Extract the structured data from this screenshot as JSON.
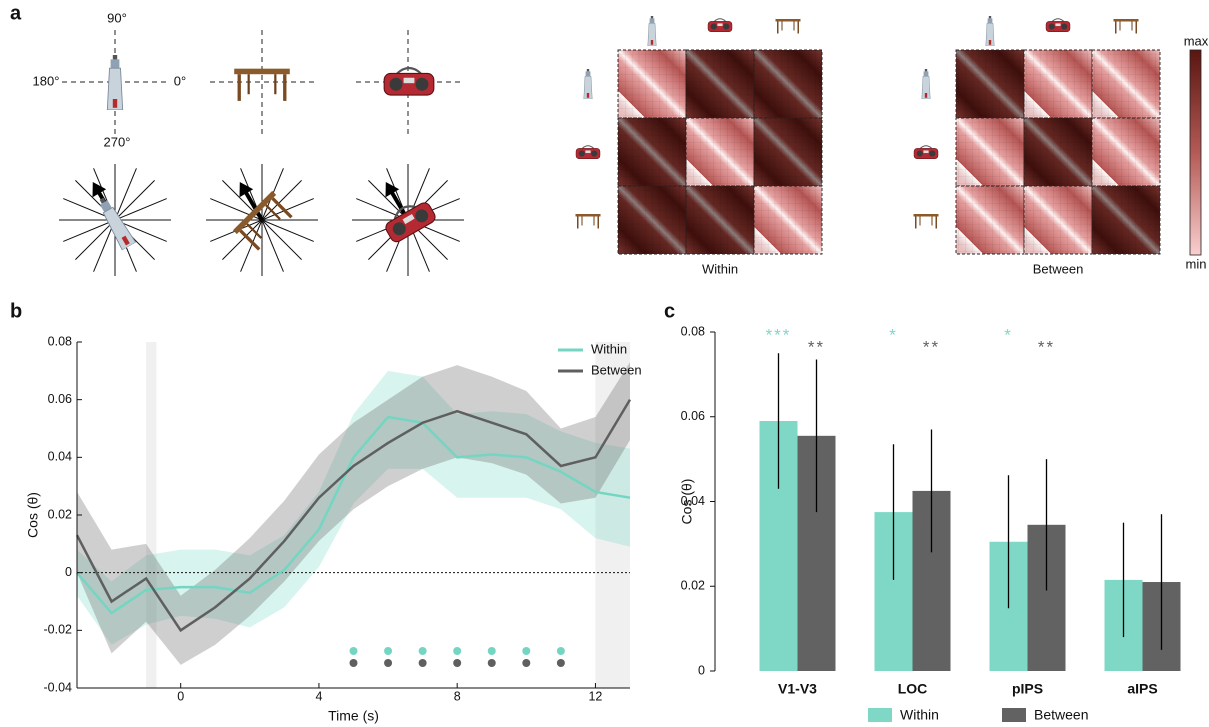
{
  "panel_labels": [
    "a",
    "b",
    "c"
  ],
  "panel_a": {
    "angles": [
      "90°",
      "180°",
      "0°",
      "270°"
    ],
    "matrix_titles": [
      "Within",
      "Between"
    ],
    "colorbar": [
      "max",
      "min"
    ]
  },
  "chart_data": [
    {
      "type": "line",
      "xlabel": "Time (s)",
      "ylabel": "Cos (θ)",
      "x": [
        -3,
        -2,
        -1,
        0,
        1,
        2,
        3,
        4,
        5,
        6,
        7,
        8,
        9,
        10,
        11,
        12,
        13
      ],
      "xlim": [
        -3,
        13
      ],
      "xticks": [
        0,
        4,
        8,
        12
      ],
      "ylim": [
        -0.04,
        0.08
      ],
      "yticks": [
        -0.04,
        -0.02,
        0,
        0.02,
        0.04,
        0.06,
        0.08
      ],
      "shaded_spans": [
        [
          -1,
          -0.7
        ],
        [
          12,
          13
        ]
      ],
      "legend": "upper right",
      "series": [
        {
          "name": "Within",
          "color": "#74d6c2",
          "values": [
            0.0,
            -0.014,
            -0.006,
            -0.005,
            -0.005,
            -0.007,
            0.001,
            0.015,
            0.04,
            0.054,
            0.052,
            0.04,
            0.041,
            0.04,
            0.035,
            0.028,
            0.026
          ],
          "lower": [
            -0.008,
            -0.025,
            -0.018,
            -0.015,
            -0.016,
            -0.019,
            -0.012,
            0.002,
            0.024,
            0.036,
            0.036,
            0.026,
            0.026,
            0.026,
            0.022,
            0.012,
            0.009
          ],
          "upper": [
            0.008,
            -0.003,
            0.006,
            0.008,
            0.008,
            0.006,
            0.013,
            0.028,
            0.055,
            0.07,
            0.068,
            0.055,
            0.056,
            0.055,
            0.049,
            0.045,
            0.043
          ],
          "significant_x": [
            5,
            6,
            7,
            8,
            9,
            10,
            11
          ]
        },
        {
          "name": "Between",
          "color": "#5f5f5f",
          "values": [
            0.013,
            -0.01,
            -0.002,
            -0.02,
            -0.012,
            -0.002,
            0.011,
            0.026,
            0.037,
            0.045,
            0.052,
            0.056,
            0.052,
            0.048,
            0.037,
            0.04,
            0.06
          ],
          "lower": [
            0.0,
            -0.028,
            -0.017,
            -0.032,
            -0.025,
            -0.015,
            -0.003,
            0.011,
            0.022,
            0.03,
            0.036,
            0.04,
            0.038,
            0.034,
            0.024,
            0.026,
            0.046
          ],
          "upper": [
            0.028,
            0.008,
            0.01,
            -0.008,
            0.001,
            0.012,
            0.025,
            0.041,
            0.052,
            0.06,
            0.068,
            0.072,
            0.068,
            0.063,
            0.05,
            0.054,
            0.073
          ],
          "significant_x": [
            5,
            6,
            7,
            8,
            9,
            10,
            11
          ]
        }
      ]
    },
    {
      "type": "bar",
      "ylabel": "Cos (θ)",
      "categories": [
        "V1-V3",
        "LOC",
        "pIPS",
        "aIPS"
      ],
      "ylim": [
        0,
        0.08
      ],
      "yticks": [
        0,
        0.02,
        0.04,
        0.06,
        0.08
      ],
      "legend": "bottom",
      "series": [
        {
          "name": "Within",
          "color": "#7fd8c6",
          "values": [
            0.059,
            0.0375,
            0.0305,
            0.0215
          ],
          "errors": [
            0.016,
            0.016,
            0.0157,
            0.0135
          ],
          "annotations": [
            "***",
            "*",
            "*",
            null
          ]
        },
        {
          "name": "Between",
          "color": "#626262",
          "values": [
            0.0555,
            0.0425,
            0.0345,
            0.021
          ],
          "errors": [
            0.018,
            0.0145,
            0.0155,
            0.016
          ],
          "annotations": [
            "**",
            "**",
            "**",
            null
          ]
        }
      ]
    }
  ]
}
